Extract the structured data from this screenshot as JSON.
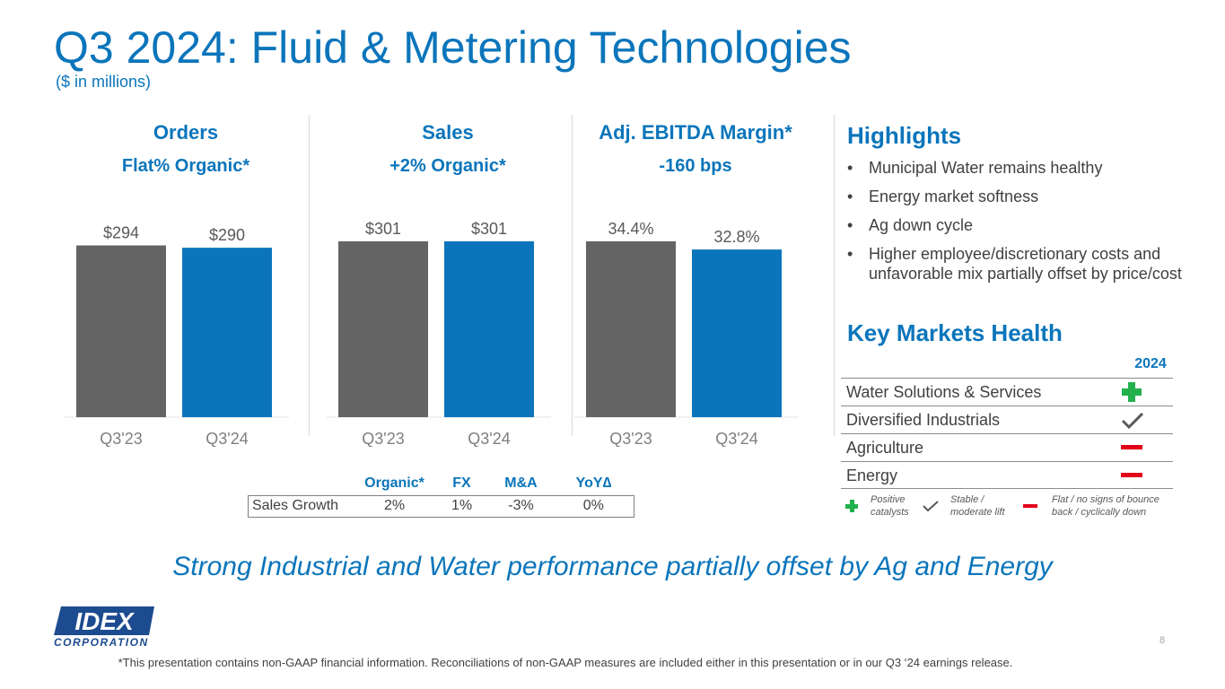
{
  "header": {
    "title": "Q3 2024: Fluid & Metering Technologies",
    "subtitle": "($ in millions)"
  },
  "chart_data": [
    {
      "type": "bar",
      "title": "Orders",
      "subtitle": "Flat% Organic*",
      "categories": [
        "Q3'23",
        "Q3'24"
      ],
      "values": [
        294,
        290
      ],
      "labels": [
        "$294",
        "$290"
      ],
      "colors": [
        "#646464",
        "#0b75bb"
      ],
      "ylim": [
        0,
        301
      ]
    },
    {
      "type": "bar",
      "title": "Sales",
      "subtitle": "+2% Organic*",
      "categories": [
        "Q3'23",
        "Q3'24"
      ],
      "values": [
        301,
        301
      ],
      "labels": [
        "$301",
        "$301"
      ],
      "colors": [
        "#646464",
        "#0b75bb"
      ],
      "ylim": [
        0,
        301
      ]
    },
    {
      "type": "bar",
      "title": "Adj. EBITDA Margin*",
      "subtitle": "-160 bps",
      "categories": [
        "Q3'23",
        "Q3'24"
      ],
      "values": [
        34.4,
        32.8
      ],
      "labels": [
        "34.4%",
        "32.8%"
      ],
      "colors": [
        "#646464",
        "#0b75bb"
      ],
      "ylim": [
        0,
        34.4
      ]
    }
  ],
  "sales_growth_table": {
    "columns": [
      "Organic*",
      "FX",
      "M&A",
      "YoY∆"
    ],
    "row_label": "Sales Growth",
    "values": [
      "2%",
      "1%",
      "-3%",
      "0%"
    ]
  },
  "highlights": {
    "title": "Highlights",
    "items": [
      "Municipal Water remains healthy",
      "Energy market softness",
      "Ag down cycle",
      "Higher employee/discretionary costs and unfavorable mix partially offset by price/cost"
    ]
  },
  "key_markets": {
    "title": "Key Markets Health",
    "year": "2024",
    "rows": [
      {
        "name": "Water Solutions & Services",
        "status": "positive"
      },
      {
        "name": "Diversified Industrials",
        "status": "stable"
      },
      {
        "name": "Agriculture",
        "status": "down"
      },
      {
        "name": "Energy",
        "status": "down"
      }
    ],
    "legend": {
      "positive": "Positive catalysts",
      "stable": "Stable / moderate lift",
      "down": "Flat / no signs of bounce back / cyclically down"
    }
  },
  "tagline": "Strong Industrial and Water performance partially offset by Ag and Energy",
  "logo": {
    "main": "IDEX",
    "sub": "CORPORATION"
  },
  "footnote": "*This presentation contains non-GAAP financial information. Reconciliations of non-GAAP measures are included either in this presentation or in our Q3 ‘24 earnings release.",
  "page_number": "8",
  "colors": {
    "brand_blue": "#0b75bb",
    "prior_gray": "#646464",
    "positive": "#22b14c",
    "negative": "#e3001b",
    "stable": "#595959"
  }
}
